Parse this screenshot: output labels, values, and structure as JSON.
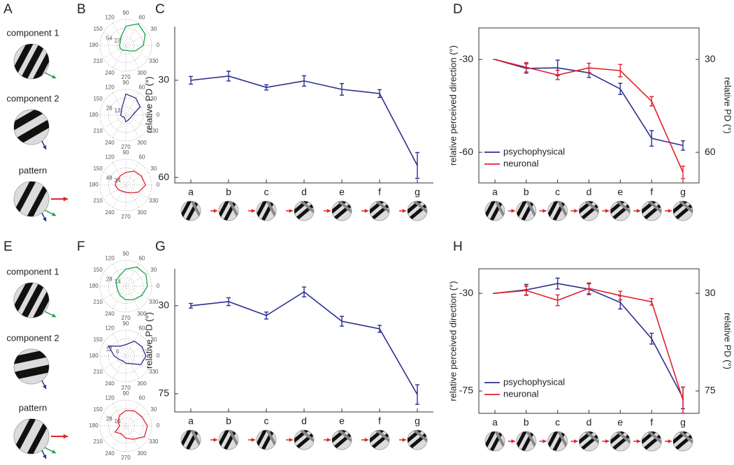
{
  "panel_letters": [
    "A",
    "B",
    "C",
    "D",
    "E",
    "F",
    "G",
    "H"
  ],
  "stimulus_labels": {
    "top": [
      "component 1",
      "component 2",
      "pattern"
    ],
    "bottom": [
      "component 1",
      "component 2",
      "pattern"
    ]
  },
  "chart_data": [
    {
      "type": "polar",
      "color": "#1aa04a",
      "theta": [
        0,
        30,
        60,
        90,
        120,
        150,
        180,
        210,
        240,
        270,
        300,
        330
      ],
      "values": [
        55,
        70,
        78,
        60,
        30,
        20,
        20,
        20,
        18,
        15,
        20,
        35
      ],
      "rlim": [
        0,
        81
      ],
      "rticks": [
        27,
        54
      ]
    },
    {
      "type": "polar",
      "color": "#2b2f8f",
      "theta": [
        0,
        30,
        60,
        90,
        120,
        150,
        180,
        210,
        240,
        270,
        300,
        330
      ],
      "values": [
        10,
        25,
        30,
        32,
        12,
        8,
        8,
        5,
        4,
        10,
        8,
        8
      ],
      "rlim": [
        0,
        39
      ],
      "rticks": [
        13,
        26
      ]
    },
    {
      "type": "polar",
      "color": "#e0222b",
      "theta": [
        0,
        30,
        60,
        90,
        120,
        150,
        180,
        210,
        240,
        270,
        300,
        330
      ],
      "values": [
        55,
        50,
        45,
        35,
        30,
        28,
        30,
        25,
        20,
        20,
        25,
        40
      ],
      "rlim": [
        0,
        72
      ],
      "rticks": [
        24,
        48
      ]
    },
    {
      "type": "polar",
      "color": "#1aa04a",
      "theta": [
        0,
        30,
        60,
        90,
        120,
        150,
        180,
        210,
        240,
        270,
        300,
        330
      ],
      "values": [
        35,
        38,
        36,
        28,
        20,
        18,
        15,
        15,
        18,
        22,
        25,
        30
      ],
      "rlim": [
        0,
        42
      ],
      "rticks": [
        14,
        28
      ]
    },
    {
      "type": "polar",
      "color": "#2b2f8f",
      "theta": [
        0,
        30,
        60,
        90,
        120,
        150,
        180,
        210,
        240,
        270,
        300,
        330
      ],
      "values": [
        14,
        13,
        12,
        8,
        8,
        14,
        8,
        5,
        4,
        5,
        6,
        12
      ],
      "rlim": [
        0,
        18
      ],
      "rticks": [
        6,
        12
      ]
    },
    {
      "type": "polar",
      "color": "#e0222b",
      "theta": [
        0,
        30,
        60,
        90,
        120,
        150,
        180,
        210,
        240,
        270,
        300,
        330
      ],
      "values": [
        35,
        30,
        28,
        25,
        20,
        15,
        10,
        20,
        15,
        20,
        25,
        35
      ],
      "rlim": [
        0,
        42
      ],
      "rticks": [
        14,
        28
      ]
    },
    {
      "type": "line",
      "ylabel": "relative PD (°)",
      "categories": [
        "a",
        "b",
        "c",
        "d",
        "e",
        "f",
        "g"
      ],
      "series": [
        {
          "color": "#2b2f8f",
          "values": [
            30,
            28.7,
            32.2,
            30.2,
            32.8,
            34.1,
            56.3
          ],
          "errors": [
            1.2,
            1.5,
            0.8,
            1.6,
            1.8,
            1.2,
            4
          ]
        }
      ],
      "ylim": [
        61.7,
        13.4
      ],
      "yticks": [
        30,
        60
      ]
    },
    {
      "type": "line",
      "ylabel": "relative perceived direction (°)",
      "y2label": "relative PD (°)",
      "categories": [
        "a",
        "b",
        "c",
        "d",
        "e",
        "f",
        "g"
      ],
      "legend": "lower left",
      "series": [
        {
          "name": "psychophysical",
          "color": "#2b2f8f",
          "values": [
            -30,
            -32.9,
            -32.7,
            -34.3,
            -39.5,
            -55.5,
            -57.8
          ],
          "errors": [
            0,
            1.5,
            2.5,
            1.5,
            1.8,
            2.5,
            1.5
          ]
        },
        {
          "name": "neuronal",
          "color": "#e0222b",
          "axis": "y2",
          "values": [
            30,
            32.5,
            35,
            32.7,
            33.6,
            43.5,
            66.5
          ],
          "errors": [
            0,
            1.5,
            1.5,
            1.5,
            2,
            1.5,
            2
          ]
        }
      ],
      "ylim": [
        -69.9,
        -19.8
      ],
      "yticks": [
        -30,
        -60
      ],
      "y2lim": [
        69.9,
        19.8
      ],
      "y2ticks": [
        30,
        60
      ]
    },
    {
      "type": "line",
      "ylabel": "relative PD (°)",
      "categories": [
        "a",
        "b",
        "c",
        "d",
        "e",
        "f",
        "g"
      ],
      "series": [
        {
          "color": "#2b2f8f",
          "values": [
            30,
            27.9,
            35,
            22.9,
            37.9,
            41.8,
            75.4
          ],
          "errors": [
            1.2,
            2,
            1.8,
            2.5,
            2.5,
            1.8,
            5
          ]
        }
      ],
      "ylim": [
        84.3,
        11.1
      ],
      "yticks": [
        30,
        75
      ]
    },
    {
      "type": "line",
      "ylabel": "relative perceived direction (°)",
      "y2label": "relative PD (°)",
      "categories": [
        "a",
        "b",
        "c",
        "d",
        "e",
        "f",
        "g"
      ],
      "legend": "lower left",
      "series": [
        {
          "name": "psychophysical",
          "color": "#2b2f8f",
          "values": [
            -30,
            -28.4,
            -25.5,
            -28.1,
            -34.2,
            -50.9,
            -78.2
          ],
          "errors": [
            0,
            2.5,
            2.5,
            2.5,
            3,
            2.5,
            5
          ]
        },
        {
          "name": "neuronal",
          "color": "#e0222b",
          "axis": "y2",
          "values": [
            30,
            28.7,
            33.2,
            27.7,
            31,
            33.9,
            79.2
          ],
          "errors": [
            0,
            2,
            2.5,
            2.5,
            2,
            1.5,
            6
          ]
        }
      ],
      "ylim": [
        -85.3,
        -18.7
      ],
      "yticks": [
        -30,
        -75
      ],
      "y2lim": [
        85.3,
        18.7
      ],
      "y2ticks": [
        30,
        75
      ]
    }
  ]
}
